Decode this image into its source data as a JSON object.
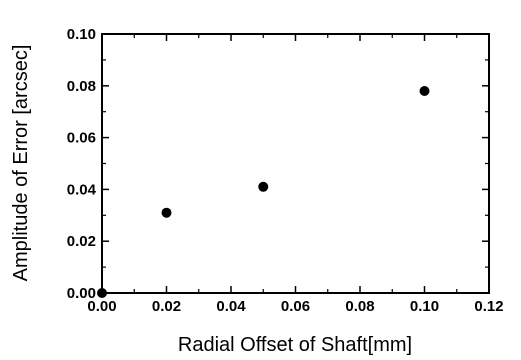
{
  "chart_data": {
    "type": "scatter",
    "title": "",
    "xlabel": "Radial Offset of Shaft[mm]",
    "ylabel": "Amplitude of Error [arcsec]",
    "xlim": [
      0.0,
      0.12
    ],
    "ylim": [
      0.0,
      0.1
    ],
    "xticks": [
      "0.00",
      "0.02",
      "0.04",
      "0.06",
      "0.08",
      "0.10",
      "0.12"
    ],
    "yticks": [
      "0.00",
      "0.02",
      "0.04",
      "0.06",
      "0.08",
      "0.10"
    ],
    "grid": false,
    "series": [
      {
        "points": [
          {
            "x": 0.0,
            "y": 0.0
          },
          {
            "x": 0.02,
            "y": 0.031
          },
          {
            "x": 0.05,
            "y": 0.041
          },
          {
            "x": 0.1,
            "y": 0.078
          }
        ],
        "marker": "filled-circle",
        "color": "#000000"
      }
    ]
  }
}
